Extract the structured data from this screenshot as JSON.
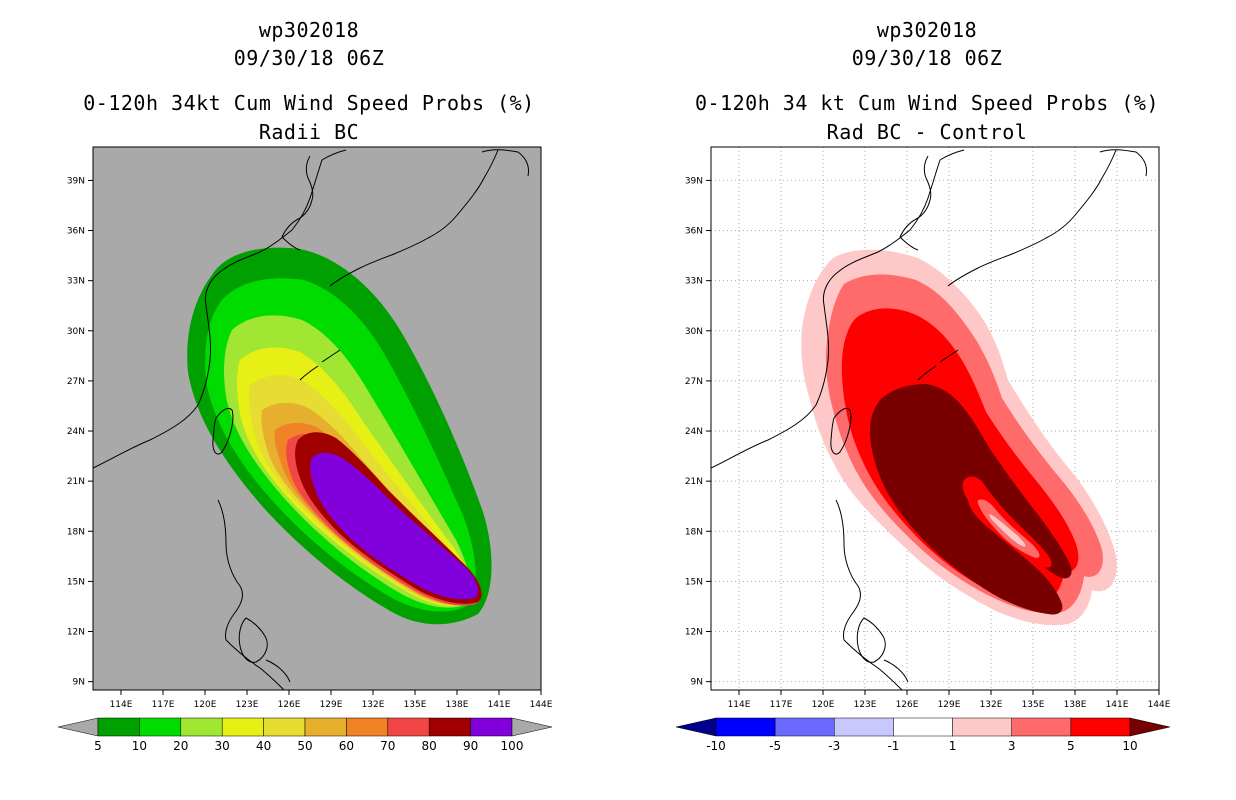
{
  "panels": [
    {
      "id": "left",
      "title_line1": "wp302018",
      "title_line2": "09/30/18 06Z",
      "title_line3": "0-120h 34kt Cum Wind Speed Probs (%)",
      "title_line4": "Radii BC",
      "background": "#a9a9a9",
      "colorbar": {
        "colors": [
          "#a9a9a9",
          "#00a000",
          "#00dc00",
          "#a0e632",
          "#e6f014",
          "#e6dc32",
          "#e6af2d",
          "#f08228",
          "#f04646",
          "#a00000",
          "#8200dc",
          "#a9a9a9"
        ],
        "labels": [
          "5",
          "10",
          "20",
          "30",
          "40",
          "50",
          "60",
          "70",
          "80",
          "90",
          "100"
        ]
      }
    },
    {
      "id": "right",
      "title_line1": "wp302018",
      "title_line2": "09/30/18 06Z",
      "title_line3": "0-120h 34 kt Cum Wind Speed Probs (%)",
      "title_line4": "Rad BC - Control",
      "background": "#ffffff",
      "colorbar": {
        "colors": [
          "#00008b",
          "#0000ff",
          "#6a6aff",
          "#c8c8ff",
          "#ffffff",
          "#ffc8c8",
          "#ff6a6a",
          "#ff0000",
          "#780000"
        ],
        "labels": [
          "-10",
          "-5",
          "-3",
          "-1",
          "1",
          "3",
          "5",
          "10"
        ]
      }
    }
  ],
  "chart_data": [
    {
      "type": "heatmap",
      "title": "0-120h 34kt Cum Wind Speed Probs (%) — Radii BC",
      "storm": "wp302018",
      "valid_time": "09/30/18 06Z",
      "x_ticks": [
        "114E",
        "117E",
        "120E",
        "123E",
        "126E",
        "129E",
        "132E",
        "135E",
        "138E",
        "141E",
        "144E"
      ],
      "y_ticks": [
        "39N",
        "36N",
        "33N",
        "30N",
        "27N",
        "24N",
        "21N",
        "18N",
        "15N",
        "12N",
        "9N"
      ],
      "xlim": [
        112,
        144
      ],
      "ylim": [
        8.5,
        41
      ],
      "contour_levels": [
        5,
        10,
        20,
        30,
        40,
        50,
        60,
        70,
        80,
        90,
        100
      ],
      "units": "%"
    },
    {
      "type": "heatmap",
      "title": "0-120h 34 kt Cum Wind Speed Probs (%) — Rad BC - Control",
      "storm": "wp302018",
      "valid_time": "09/30/18 06Z",
      "x_ticks": [
        "114E",
        "117E",
        "120E",
        "123E",
        "126E",
        "129E",
        "132E",
        "135E",
        "138E",
        "141E",
        "144E"
      ],
      "y_ticks": [
        "39N",
        "36N",
        "33N",
        "30N",
        "27N",
        "24N",
        "21N",
        "18N",
        "15N",
        "12N",
        "9N"
      ],
      "xlim": [
        112,
        144
      ],
      "ylim": [
        8.5,
        41
      ],
      "contour_levels": [
        -10,
        -5,
        -3,
        -1,
        1,
        3,
        5,
        10
      ],
      "units": "%"
    }
  ]
}
